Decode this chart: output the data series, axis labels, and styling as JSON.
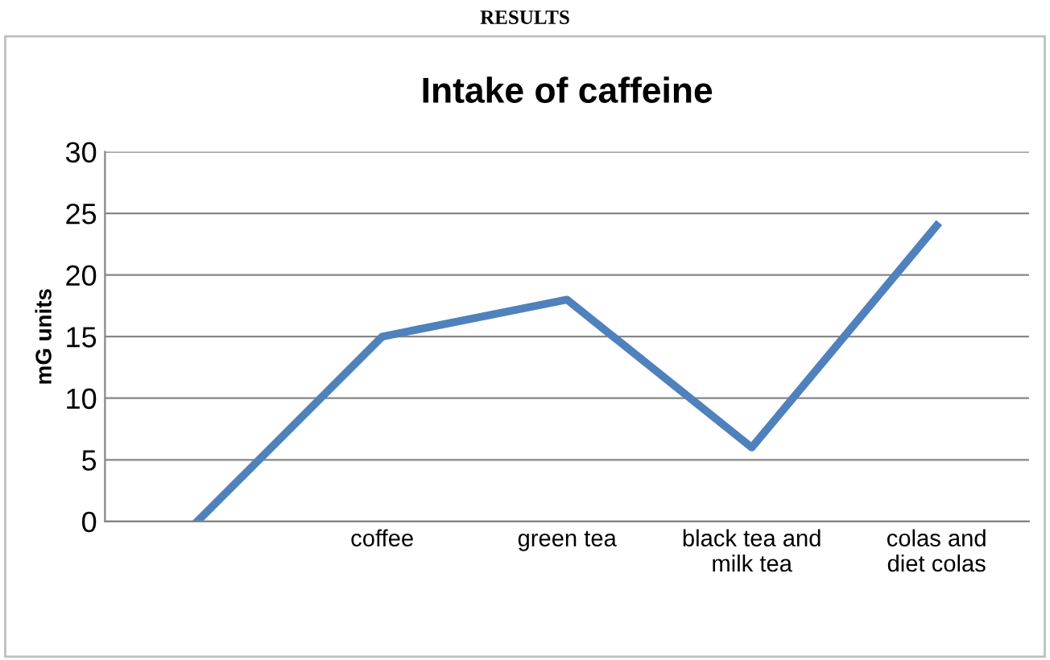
{
  "chart_data": {
    "type": "line",
    "title": "Intake of caffeine",
    "ylabel": "mG units",
    "annotations": [
      "RESULTS"
    ],
    "categories": [
      null,
      "coffee",
      "green tea",
      "black tea and\nmilk tea",
      "colas and\ndiet colas"
    ],
    "series": [
      {
        "color": "#4f81bd",
        "values": [
          0,
          15,
          18,
          6,
          24
        ]
      }
    ],
    "ylim": [
      0,
      30
    ],
    "yticks": [
      0,
      5,
      10,
      15,
      20,
      25,
      30
    ],
    "grid": "y",
    "legend": false,
    "marker": "none",
    "line_style": "solid"
  }
}
